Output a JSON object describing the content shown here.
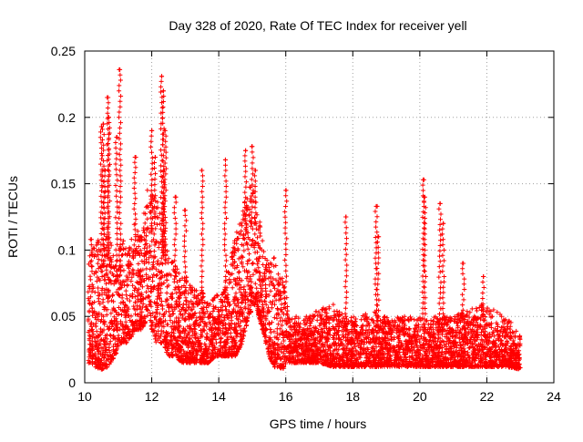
{
  "chart_data": {
    "type": "scatter",
    "title": "Day 328 of 2020, Rate Of TEC Index for receiver yell",
    "xlabel": "GPS time / hours",
    "ylabel": "ROTI / TECUs",
    "xlim": [
      10,
      24
    ],
    "ylim": [
      0,
      0.25
    ],
    "xticks": [
      10,
      12,
      14,
      16,
      18,
      20,
      22,
      24
    ],
    "yticks": [
      0,
      0.05,
      0.1,
      0.15,
      0.2,
      0.25
    ],
    "xtick_labels": [
      "10",
      "12",
      "14",
      "16",
      "18",
      "20",
      "22",
      "24"
    ],
    "ytick_labels": [
      "0",
      "0.05",
      "0.1",
      "0.15",
      "0.2",
      "0.25"
    ],
    "grid": true,
    "marker": "+",
    "series_color": "#ff0000",
    "envelope": {
      "x": [
        10.1,
        10.3,
        10.5,
        10.7,
        10.9,
        11.1,
        11.3,
        11.5,
        11.7,
        11.9,
        12.1,
        12.3,
        12.5,
        12.7,
        12.9,
        13.1,
        13.3,
        13.5,
        13.7,
        13.9,
        14.1,
        14.3,
        14.5,
        14.7,
        14.9,
        15.1,
        15.3,
        15.5,
        15.7,
        15.9,
        16.1,
        16.3,
        16.6,
        17.0,
        17.4,
        17.8,
        18.2,
        18.6,
        19.0,
        19.4,
        19.8,
        20.2,
        20.6,
        21.0,
        21.4,
        21.8,
        22.2,
        22.6,
        23.0
      ],
      "low": [
        0.015,
        0.012,
        0.01,
        0.012,
        0.02,
        0.03,
        0.03,
        0.04,
        0.04,
        0.05,
        0.03,
        0.03,
        0.02,
        0.02,
        0.015,
        0.015,
        0.015,
        0.015,
        0.015,
        0.02,
        0.02,
        0.02,
        0.02,
        0.03,
        0.05,
        0.06,
        0.04,
        0.02,
        0.01,
        0.01,
        0.015,
        0.015,
        0.015,
        0.015,
        0.012,
        0.012,
        0.012,
        0.012,
        0.012,
        0.012,
        0.012,
        0.012,
        0.012,
        0.012,
        0.012,
        0.012,
        0.012,
        0.012,
        0.01
      ],
      "high": [
        0.09,
        0.12,
        0.1,
        0.12,
        0.09,
        0.11,
        0.1,
        0.12,
        0.12,
        0.15,
        0.14,
        0.13,
        0.1,
        0.09,
        0.08,
        0.08,
        0.07,
        0.07,
        0.06,
        0.065,
        0.07,
        0.09,
        0.11,
        0.13,
        0.15,
        0.14,
        0.11,
        0.09,
        0.1,
        0.08,
        0.05,
        0.05,
        0.05,
        0.055,
        0.06,
        0.05,
        0.05,
        0.055,
        0.05,
        0.05,
        0.05,
        0.05,
        0.05,
        0.05,
        0.055,
        0.06,
        0.055,
        0.05,
        0.035
      ],
      "density_per_hour": 420
    },
    "spikes": [
      [
        10.5,
        0.193
      ],
      [
        10.55,
        0.195
      ],
      [
        10.7,
        0.215
      ],
      [
        10.72,
        0.2
      ],
      [
        10.95,
        0.185
      ],
      [
        11.05,
        0.236
      ],
      [
        11.5,
        0.17
      ],
      [
        12.0,
        0.19
      ],
      [
        12.1,
        0.17
      ],
      [
        12.3,
        0.231
      ],
      [
        12.35,
        0.22
      ],
      [
        12.4,
        0.19
      ],
      [
        12.35,
        0.16
      ],
      [
        13.0,
        0.13
      ],
      [
        13.5,
        0.16
      ],
      [
        14.2,
        0.168
      ],
      [
        14.8,
        0.175
      ],
      [
        15.0,
        0.178
      ],
      [
        15.1,
        0.16
      ],
      [
        16.0,
        0.145
      ],
      [
        17.8,
        0.125
      ],
      [
        18.7,
        0.133
      ],
      [
        18.75,
        0.11
      ],
      [
        20.1,
        0.153
      ],
      [
        20.15,
        0.14
      ],
      [
        20.6,
        0.135
      ],
      [
        20.7,
        0.12
      ],
      [
        21.3,
        0.09
      ],
      [
        21.9,
        0.08
      ],
      [
        12.7,
        0.14
      ],
      [
        10.2,
        0.108
      ],
      [
        10.6,
        0.16
      ]
    ]
  }
}
